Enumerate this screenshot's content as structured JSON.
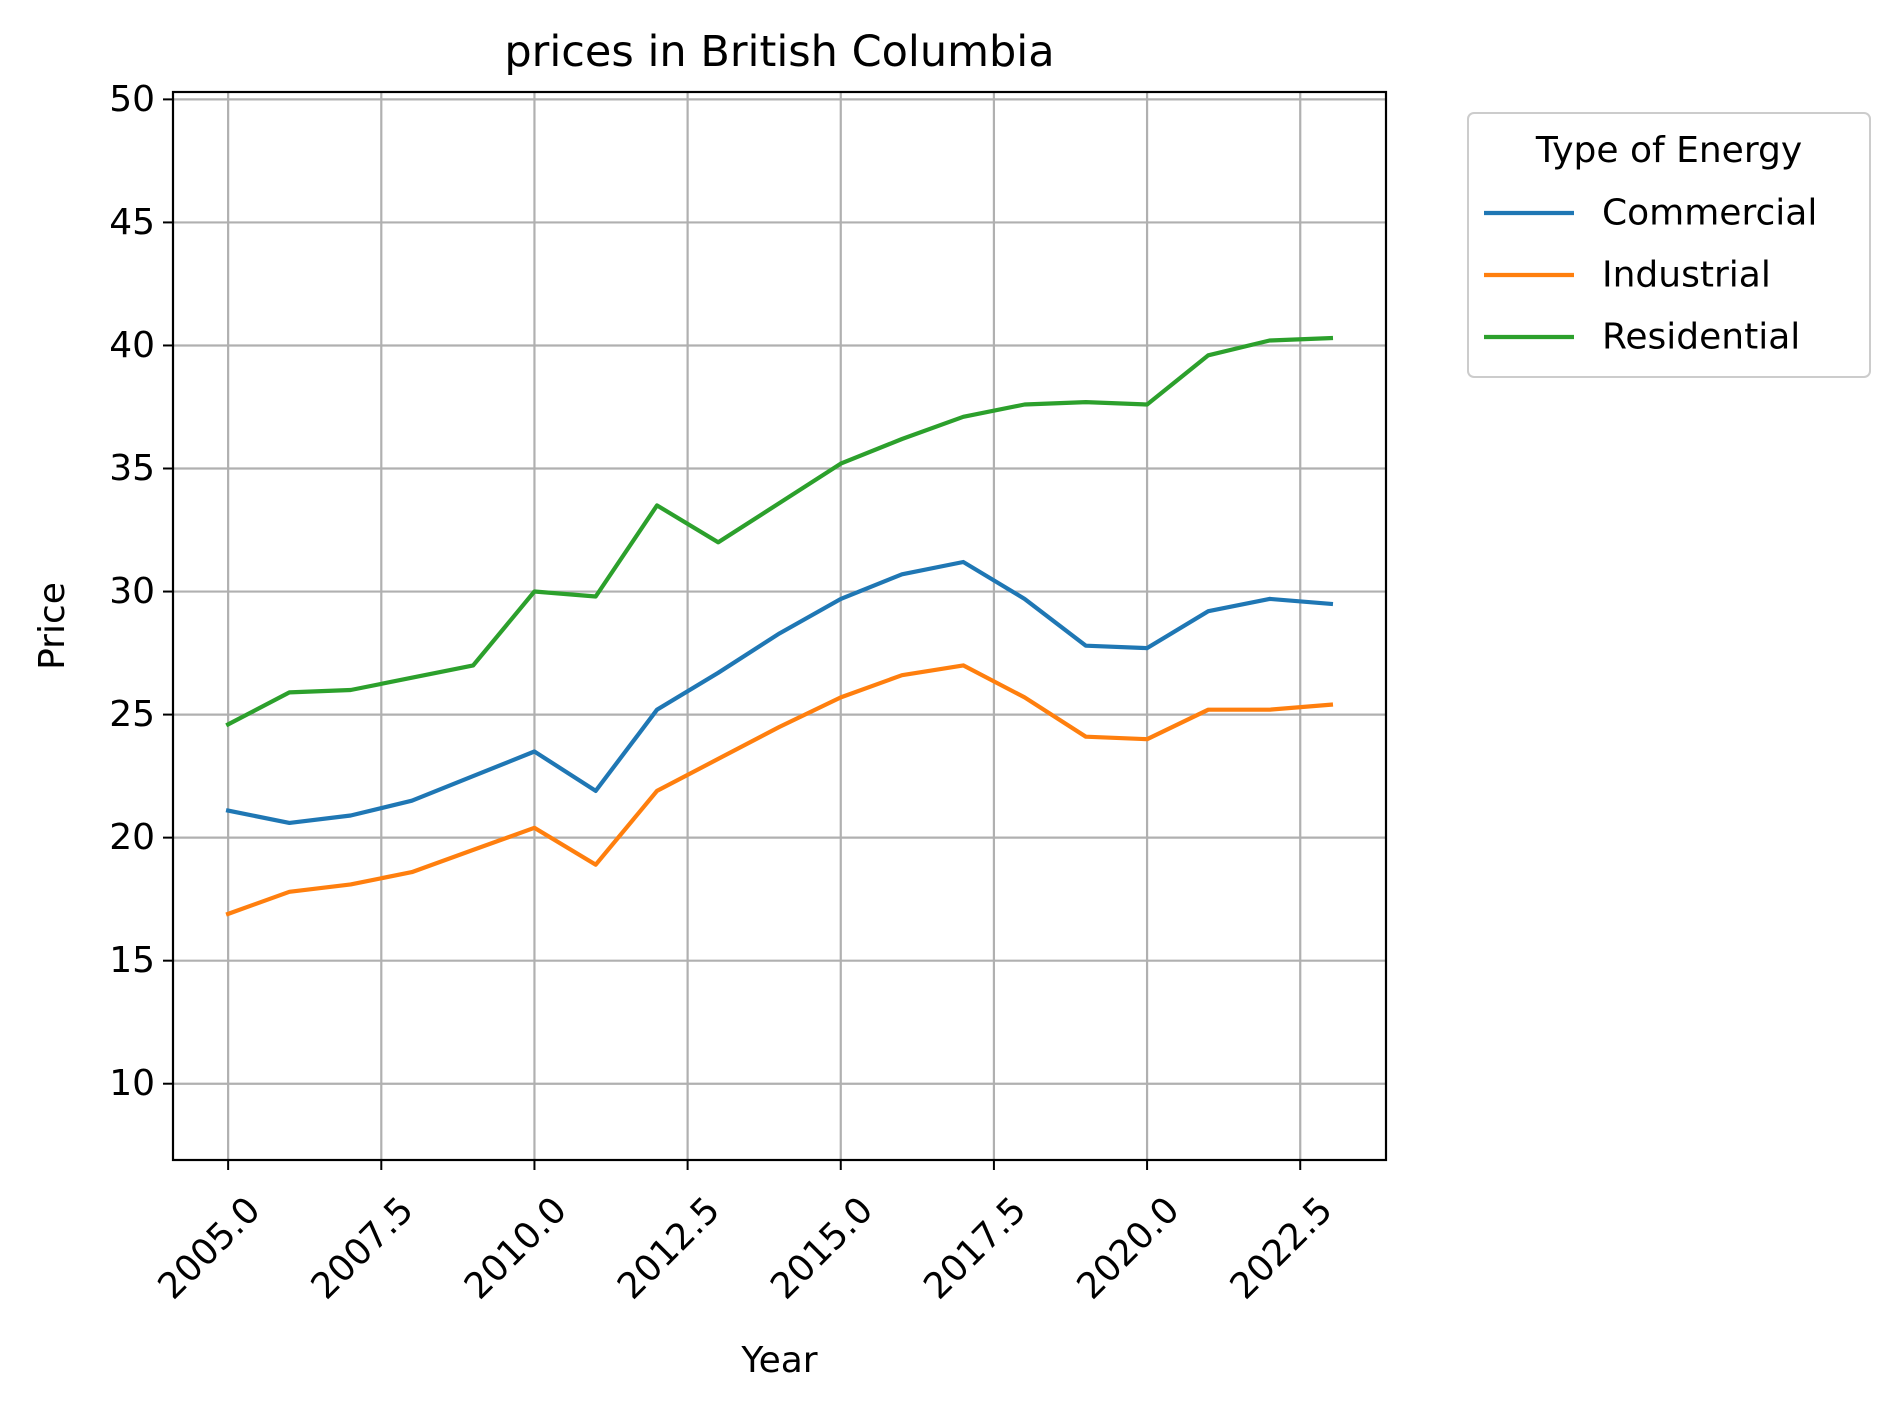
{
  "chart_data": {
    "type": "line",
    "title": "prices in British Columbia",
    "xlabel": "Year",
    "ylabel": "Price",
    "xlim": [
      2004.1,
      2023.9
    ],
    "ylim": [
      6.9,
      50.3
    ],
    "xticks": [
      2005.0,
      2007.5,
      2010.0,
      2012.5,
      2015.0,
      2017.5,
      2020.0,
      2022.5
    ],
    "xtick_labels": [
      "2005.0",
      "2007.5",
      "2010.0",
      "2012.5",
      "2015.0",
      "2017.5",
      "2020.0",
      "2022.5"
    ],
    "yticks": [
      10,
      15,
      20,
      25,
      30,
      35,
      40,
      45,
      50
    ],
    "ytick_labels": [
      "10",
      "15",
      "20",
      "25",
      "30",
      "35",
      "40",
      "45",
      "50"
    ],
    "grid": true,
    "legend": {
      "title": "Type of Energy",
      "placement": "outside-top-right"
    },
    "x": [
      2005,
      2006,
      2007,
      2008,
      2009,
      2010,
      2011,
      2012,
      2013,
      2014,
      2015,
      2016,
      2017,
      2018,
      2019,
      2020,
      2021,
      2022,
      2023
    ],
    "series": [
      {
        "name": "Commercial",
        "color": "#1f77b4",
        "values": [
          21.1,
          20.6,
          20.9,
          21.5,
          22.5,
          23.5,
          21.9,
          25.2,
          26.7,
          28.3,
          29.7,
          30.7,
          31.2,
          29.7,
          27.8,
          27.7,
          29.2,
          29.7,
          29.5
        ]
      },
      {
        "name": "Industrial",
        "color": "#ff7f0e",
        "values": [
          16.9,
          17.8,
          18.1,
          18.6,
          19.5,
          20.4,
          18.9,
          21.9,
          23.2,
          24.5,
          25.7,
          26.6,
          27.0,
          25.7,
          24.1,
          24.0,
          25.2,
          25.2,
          25.4
        ]
      },
      {
        "name": "Residential",
        "color": "#2ca02c",
        "values": [
          24.6,
          25.9,
          26.0,
          26.5,
          27.0,
          30.0,
          29.8,
          33.5,
          32.0,
          33.6,
          35.2,
          36.2,
          37.1,
          37.6,
          37.7,
          37.6,
          39.6,
          40.2,
          40.3
        ]
      }
    ]
  }
}
